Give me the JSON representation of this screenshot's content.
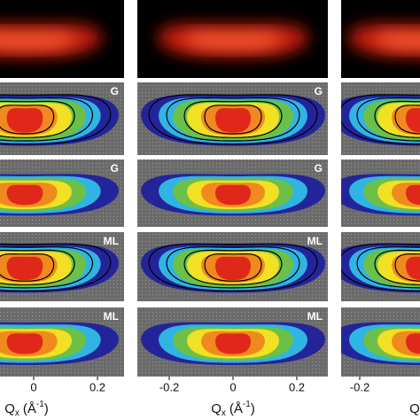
{
  "columns": [
    {
      "panel_labels": [
        "G",
        "G",
        "ML",
        "ML"
      ],
      "x_ticks": [
        "0",
        "0.2"
      ],
      "x_label": {
        "base": "Q",
        "sub": "x",
        "unit": "(Å",
        "sup": "-1",
        "close": ")"
      }
    },
    {
      "panel_labels": [
        "G",
        "G",
        "ML",
        "ML"
      ],
      "x_ticks": [
        "-0.2",
        "0",
        "0.2"
      ],
      "x_label": {
        "base": "Q",
        "sub": "x",
        "unit": "(Å",
        "sup": "-1",
        "close": ")"
      }
    },
    {
      "x_ticks": [
        "-0.2"
      ],
      "x_label": {
        "base": "Q"
      }
    }
  ]
}
